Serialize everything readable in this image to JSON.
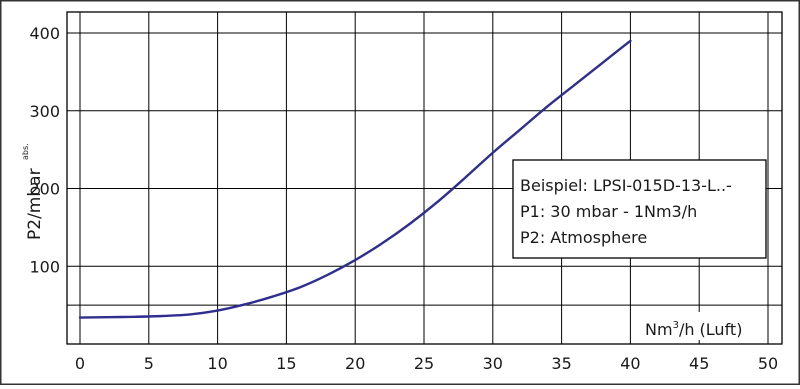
{
  "chart_data": {
    "type": "line",
    "title": "",
    "xlabel": "Nm³/h (Luft)",
    "xlabel_parts": {
      "base": "Nm",
      "sup": "3",
      "rest": "/h (Luft)"
    },
    "ylabel": "P2/mbar abs.",
    "ylabel_parts": {
      "main": "P2/mbar",
      "sub": "abs."
    },
    "xlim": [
      0,
      50
    ],
    "ylim": [
      0,
      420
    ],
    "x_ticks": [
      0,
      5,
      10,
      15,
      20,
      25,
      30,
      35,
      40,
      45,
      50
    ],
    "y_ticks": [
      100,
      200,
      300,
      400
    ],
    "y_minor_lines": [
      50
    ],
    "grid": true,
    "series": [
      {
        "color": "#2e2e8f",
        "points": [
          [
            0,
            34
          ],
          [
            2,
            34.5
          ],
          [
            4,
            35
          ],
          [
            6,
            36
          ],
          [
            8,
            38
          ],
          [
            10,
            43
          ],
          [
            12,
            51
          ],
          [
            14,
            61
          ],
          [
            16,
            73
          ],
          [
            18,
            89
          ],
          [
            20,
            108
          ],
          [
            22,
            130
          ],
          [
            24,
            155
          ],
          [
            26,
            183
          ],
          [
            28,
            214
          ],
          [
            30,
            246
          ],
          [
            32,
            276
          ],
          [
            34,
            306
          ],
          [
            36,
            334
          ],
          [
            38,
            362
          ],
          [
            40,
            390
          ]
        ]
      }
    ],
    "annotation": {
      "lines": [
        "Beispiel: LPSI-015D-13-L..-",
        "P1: 30 mbar - 1Nm3/h",
        "P2: Atmosphere"
      ]
    }
  }
}
